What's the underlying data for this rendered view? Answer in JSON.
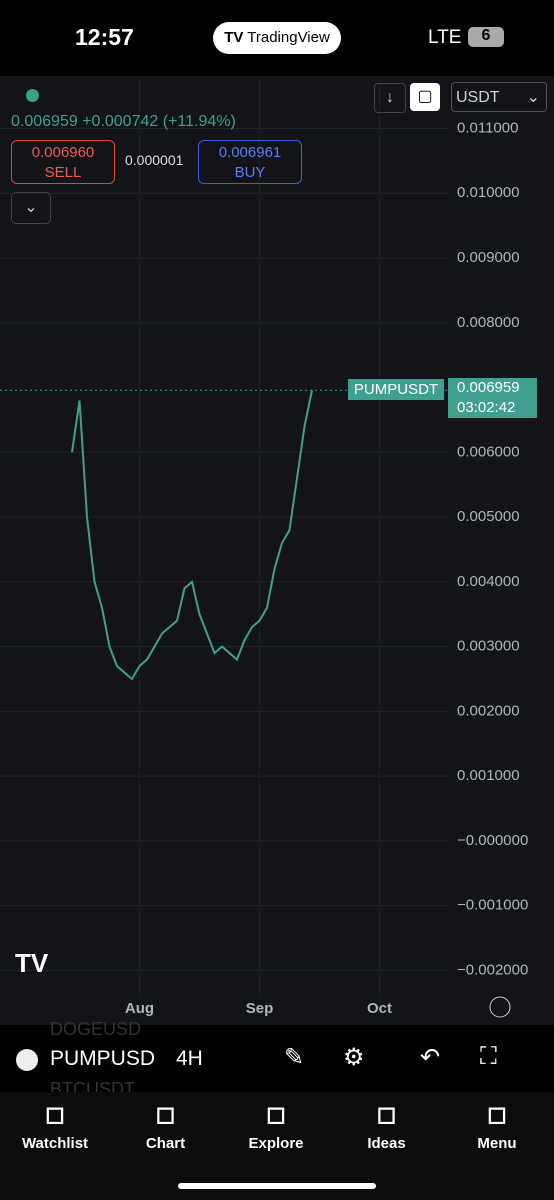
{
  "status_bar": {
    "time": "12:57",
    "app": "TradingView",
    "network": "LTE",
    "battery": "6"
  },
  "header": {
    "price": "0.006959",
    "change": "+0.000742",
    "change_pct": "(+11.94%)",
    "sell_price": "0.006960",
    "sell_label": "SELL",
    "spread": "0.000001",
    "buy_price": "0.006961",
    "buy_label": "BUY",
    "currency": "USDT"
  },
  "price_label": {
    "symbol": "PUMPUSDT",
    "price": "0.006959",
    "countdown": "03:02:42"
  },
  "chart_data": {
    "type": "line",
    "categories": [
      null,
      null,
      null,
      null,
      null,
      null,
      null,
      null,
      null,
      "Aug",
      null,
      null,
      null,
      null,
      null,
      null,
      null,
      null,
      null,
      null,
      null,
      null,
      null,
      null,
      null,
      "Sep",
      null,
      null,
      null,
      null,
      null,
      null,
      null,
      null,
      null,
      null,
      null,
      null,
      null,
      null,
      null,
      "Oct"
    ],
    "series": [
      {
        "name": "PUMPUSDT",
        "color": "#3fa08f",
        "values": [
          0.006,
          0.0068,
          0.005,
          0.004,
          0.0036,
          0.003,
          0.0027,
          0.0026,
          0.0025,
          0.0027,
          0.0028,
          0.003,
          0.0032,
          0.0033,
          0.0034,
          0.0039,
          0.004,
          0.0035,
          0.0032,
          0.0029,
          0.003,
          0.0029,
          0.0028,
          0.0031,
          0.0033,
          0.0034,
          0.0036,
          0.0042,
          0.0046,
          0.0048,
          0.0056,
          0.0064,
          0.006959,
          null,
          null,
          null,
          null,
          null,
          null,
          null,
          null,
          null
        ]
      }
    ],
    "ylim": [
      -0.00238,
      0.01178
    ],
    "yticks": [
      {
        "value": 0.011,
        "label": "0.011000"
      },
      {
        "value": 0.01,
        "label": "0.010000"
      },
      {
        "value": 0.009,
        "label": "0.009000"
      },
      {
        "value": 0.008,
        "label": "0.008000"
      },
      {
        "value": 0.006,
        "label": "0.006000"
      },
      {
        "value": 0.005,
        "label": "0.005000"
      },
      {
        "value": 0.004,
        "label": "0.004000"
      },
      {
        "value": 0.003,
        "label": "0.003000"
      },
      {
        "value": 0.002,
        "label": "0.002000"
      },
      {
        "value": 0.001,
        "label": "0.001000"
      },
      {
        "value": 0,
        "label": "−0.000000"
      },
      {
        "value": -0.001,
        "label": "−0.001000"
      },
      {
        "value": -0.002,
        "label": "−0.002000"
      }
    ],
    "grid": true
  },
  "toolbar": {
    "symbol": "PUMPUSD",
    "interval": "4H",
    "ghost_1": "DOGEUSD",
    "ghost_2": "BTCUSDT"
  },
  "tabs": [
    "Watchlist",
    "Chart",
    "Explore",
    "Ideas",
    "Menu"
  ]
}
